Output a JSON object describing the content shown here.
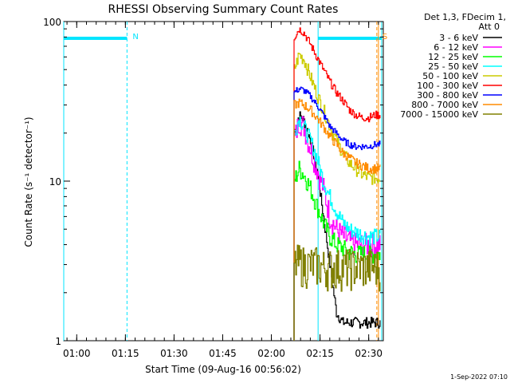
{
  "chart_data": {
    "type": "line",
    "title": "RHESSI Observing Summary Count Rates",
    "xlabel": "Start Time (09-Aug-16 00:56:02)",
    "ylabel": "Count Rate (s⁻¹ detector⁻¹)",
    "ylog": true,
    "ylim": [
      1,
      100
    ],
    "xlim_minutes": [
      56.0,
      154.5
    ],
    "x_ticks": [
      "01:00",
      "01:15",
      "01:30",
      "01:45",
      "02:00",
      "02:15",
      "02:30"
    ],
    "y_ticks": [
      "1",
      "10",
      "100"
    ],
    "legend_header": [
      "Det 1,3, FDecim 1,",
      "Att 0"
    ],
    "legend_position": "right",
    "markers": [
      {
        "label": "N",
        "x_minutes": 75.5,
        "color": "#00e5ff"
      },
      {
        "label": "S",
        "x_minutes": 152.5,
        "color": "#ff8c00"
      }
    ],
    "timestamp": "1-Sep-2022 07:10",
    "series": [
      {
        "name": "3 - 6 keV",
        "color": "#000000",
        "x": [
          127.0,
          128.5,
          130,
          132,
          134,
          136,
          138,
          140,
          142,
          144,
          146,
          148,
          150,
          152,
          153.5
        ],
        "y": [
          20,
          26,
          24,
          18,
          12,
          6,
          3,
          1.5,
          1.3,
          1.3,
          1.3,
          1.3,
          1.3,
          1.3,
          1.3
        ]
      },
      {
        "name": "6 - 12 keV",
        "color": "#ff00ff",
        "x": [
          127.0,
          128.5,
          130,
          132,
          134,
          136,
          138,
          140,
          142,
          144,
          146,
          148,
          150,
          152,
          153.5
        ],
        "y": [
          18,
          24,
          22,
          16,
          12,
          9,
          6,
          5,
          4.5,
          4.2,
          4.0,
          4.0,
          4.0,
          4.0,
          4.0
        ]
      },
      {
        "name": "12 - 25 keV",
        "color": "#00ff00",
        "x": [
          127.0,
          128.5,
          130,
          132,
          134,
          136,
          138,
          140,
          142,
          144,
          146,
          148,
          150,
          152,
          153.5
        ],
        "y": [
          10,
          12,
          11,
          9,
          7,
          5.5,
          4.5,
          4.0,
          3.8,
          3.6,
          3.5,
          3.5,
          3.5,
          3.5,
          3.5
        ]
      },
      {
        "name": "25 - 50 keV",
        "color": "#00ffff",
        "x": [
          127.0,
          128.5,
          130,
          132,
          134,
          136,
          138,
          140,
          142,
          144,
          146,
          148,
          150,
          152,
          153.5
        ],
        "y": [
          20,
          25,
          22,
          18,
          14,
          10,
          8,
          6.5,
          5.5,
          5.0,
          4.8,
          4.6,
          4.5,
          4.5,
          4.5
        ]
      },
      {
        "name": "50 - 100 keV",
        "color": "#cccc00",
        "x": [
          127.0,
          128.5,
          130,
          132,
          134,
          136,
          138,
          140,
          142,
          144,
          146,
          148,
          150,
          152,
          153.5
        ],
        "y": [
          50,
          62,
          58,
          45,
          35,
          28,
          22,
          18,
          15,
          13,
          12,
          11,
          10.5,
          10.5,
          10.5
        ]
      },
      {
        "name": "100 - 300 keV",
        "color": "#ff0000",
        "x": [
          127.0,
          128.5,
          130,
          132,
          134,
          136,
          138,
          140,
          142,
          144,
          146,
          148,
          150,
          152,
          153.5
        ],
        "y": [
          80,
          90,
          85,
          72,
          60,
          50,
          42,
          36,
          32,
          28,
          26,
          25,
          25,
          26,
          26
        ]
      },
      {
        "name": "300 - 800 keV",
        "color": "#0000ff",
        "x": [
          127.0,
          128.5,
          130,
          132,
          134,
          136,
          138,
          140,
          142,
          144,
          146,
          148,
          150,
          152,
          153.5
        ],
        "y": [
          36,
          38,
          37,
          34,
          30,
          26,
          22,
          20,
          18,
          17,
          16.5,
          16.5,
          16.5,
          17,
          17
        ]
      },
      {
        "name": "800 - 7000 keV",
        "color": "#ff8c00",
        "x": [
          127.0,
          128.5,
          130,
          132,
          134,
          136,
          138,
          140,
          142,
          144,
          146,
          148,
          150,
          152,
          153.5
        ],
        "y": [
          30,
          31,
          30,
          28,
          25,
          22,
          19,
          17,
          15,
          14,
          13,
          12.5,
          12,
          12,
          12
        ]
      },
      {
        "name": "7000 - 15000 keV",
        "color": "#808000",
        "x": [
          127.0,
          128.5,
          130,
          132,
          134,
          136,
          138,
          140,
          142,
          144,
          146,
          148,
          150,
          152,
          153.5
        ],
        "y": [
          3.0,
          3.1,
          3.0,
          3.0,
          3.0,
          2.9,
          2.9,
          2.9,
          2.9,
          2.9,
          2.9,
          2.9,
          2.9,
          2.9,
          2.9
        ]
      }
    ]
  }
}
